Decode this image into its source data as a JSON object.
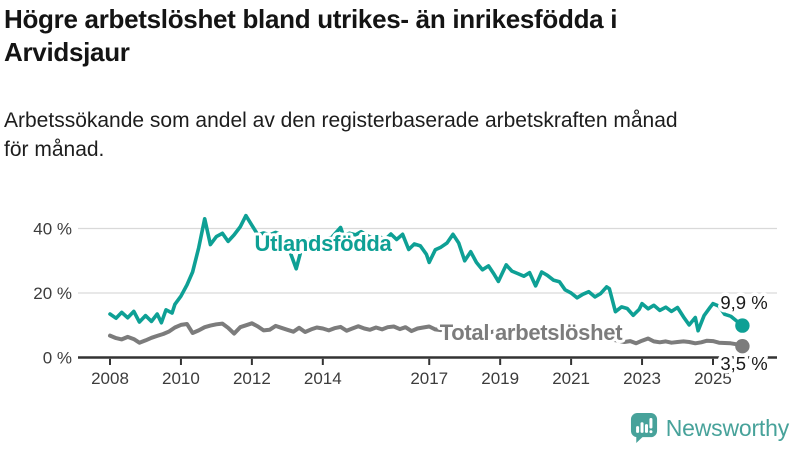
{
  "header": {
    "title_lines": [
      "Högre arbetslöshet bland utrikes- än inrikesfödda i",
      "Arvidsjaur"
    ],
    "subtitle_lines": [
      "Arbetssökande som andel av den registerbaserade arbetskraften månad",
      "för månad."
    ]
  },
  "footer": {
    "brand": "Newsworthy"
  },
  "colors": {
    "teal": "#0ea095",
    "gray": "#7c7c7c",
    "grid": "#d9d9d9",
    "axis": "#333333",
    "tick_label": "#3c3c3c",
    "value_label": "#1a1a1a",
    "logo_teal": "#47a29a"
  },
  "chart_data": {
    "type": "line",
    "title": "Högre arbetslöshet bland utrikes- än inrikesfödda i Arvidsjaur",
    "xlabel": "",
    "ylabel": "",
    "ylim": [
      0,
      45
    ],
    "grid": "horizontal",
    "x_axis": {
      "ticks": [
        {
          "year": 2008,
          "label": "2008"
        },
        {
          "year": 2010,
          "label": "2010"
        },
        {
          "year": 2012,
          "label": "2012"
        },
        {
          "year": 2014,
          "label": "2014"
        },
        {
          "year": 2017,
          "label": "2017"
        },
        {
          "year": 2019,
          "label": "2019"
        },
        {
          "year": 2021,
          "label": "2021"
        },
        {
          "year": 2023,
          "label": "2023"
        },
        {
          "year": 2025,
          "label": "2025"
        }
      ]
    },
    "y_axis": {
      "ticks": [
        {
          "value": 0,
          "label": "0 %"
        },
        {
          "value": 20,
          "label": "20 %"
        },
        {
          "value": 40,
          "label": "40 %"
        }
      ]
    },
    "series": [
      {
        "name": "Utlandsfödda",
        "color": "#0ea095",
        "end_label": "9,9 %",
        "end_value": 9.9,
        "points": [
          [
            2008.0,
            13.5
          ],
          [
            2008.17,
            12.2
          ],
          [
            2008.33,
            14.0
          ],
          [
            2008.5,
            12.3
          ],
          [
            2008.67,
            14.3
          ],
          [
            2008.83,
            11.0
          ],
          [
            2009.0,
            13.0
          ],
          [
            2009.17,
            11.2
          ],
          [
            2009.33,
            13.5
          ],
          [
            2009.45,
            10.8
          ],
          [
            2009.58,
            14.8
          ],
          [
            2009.75,
            13.8
          ],
          [
            2009.83,
            16.5
          ],
          [
            2010.0,
            19.0
          ],
          [
            2010.17,
            22.5
          ],
          [
            2010.33,
            26.5
          ],
          [
            2010.5,
            34.0
          ],
          [
            2010.67,
            43.0
          ],
          [
            2010.83,
            35.0
          ],
          [
            2011.0,
            37.5
          ],
          [
            2011.17,
            38.5
          ],
          [
            2011.33,
            36.0
          ],
          [
            2011.5,
            38.0
          ],
          [
            2011.67,
            40.5
          ],
          [
            2011.83,
            44.0
          ],
          [
            2012.0,
            41.0
          ],
          [
            2012.17,
            38.0
          ],
          [
            2012.33,
            38.6
          ],
          [
            2012.5,
            38.0
          ],
          [
            2012.67,
            38.8
          ],
          [
            2012.83,
            38.0
          ],
          [
            2013.0,
            35.0
          ],
          [
            2013.25,
            27.5
          ],
          [
            2013.42,
            34.5
          ],
          [
            2013.58,
            36.5
          ],
          [
            2013.75,
            37.2
          ],
          [
            2013.92,
            36.0
          ],
          [
            2014.08,
            36.8
          ],
          [
            2014.25,
            37.2
          ],
          [
            2014.5,
            40.3
          ],
          [
            2014.58,
            37.8
          ],
          [
            2014.75,
            38.5
          ],
          [
            2014.92,
            38.0
          ],
          [
            2015.08,
            39.0
          ],
          [
            2015.25,
            37.8
          ],
          [
            2015.42,
            36.8
          ],
          [
            2015.58,
            37.6
          ],
          [
            2015.75,
            36.5
          ],
          [
            2015.92,
            38.3
          ],
          [
            2016.08,
            36.6
          ],
          [
            2016.25,
            38.2
          ],
          [
            2016.42,
            33.5
          ],
          [
            2016.58,
            35.2
          ],
          [
            2016.75,
            34.6
          ],
          [
            2016.92,
            32.0
          ],
          [
            2017.0,
            29.5
          ],
          [
            2017.17,
            33.4
          ],
          [
            2017.33,
            34.2
          ],
          [
            2017.5,
            35.5
          ],
          [
            2017.67,
            38.2
          ],
          [
            2017.83,
            35.5
          ],
          [
            2018.0,
            30.0
          ],
          [
            2018.17,
            32.8
          ],
          [
            2018.33,
            29.5
          ],
          [
            2018.5,
            27.2
          ],
          [
            2018.67,
            28.4
          ],
          [
            2018.83,
            25.8
          ],
          [
            2018.95,
            23.6
          ],
          [
            2019.17,
            28.7
          ],
          [
            2019.33,
            26.8
          ],
          [
            2019.5,
            26.0
          ],
          [
            2019.67,
            25.2
          ],
          [
            2019.83,
            26.3
          ],
          [
            2020.0,
            22.2
          ],
          [
            2020.17,
            26.5
          ],
          [
            2020.33,
            25.5
          ],
          [
            2020.5,
            24.0
          ],
          [
            2020.67,
            23.5
          ],
          [
            2020.83,
            21.0
          ],
          [
            2021.0,
            20.0
          ],
          [
            2021.17,
            18.5
          ],
          [
            2021.33,
            19.6
          ],
          [
            2021.5,
            20.4
          ],
          [
            2021.67,
            18.8
          ],
          [
            2021.83,
            19.8
          ],
          [
            2022.0,
            21.9
          ],
          [
            2022.08,
            21.3
          ],
          [
            2022.25,
            14.2
          ],
          [
            2022.42,
            15.7
          ],
          [
            2022.58,
            15.2
          ],
          [
            2022.75,
            13.1
          ],
          [
            2022.92,
            14.9
          ],
          [
            2023.0,
            16.7
          ],
          [
            2023.17,
            15.1
          ],
          [
            2023.33,
            16.2
          ],
          [
            2023.5,
            14.6
          ],
          [
            2023.67,
            15.6
          ],
          [
            2023.83,
            14.3
          ],
          [
            2024.0,
            15.5
          ],
          [
            2024.17,
            12.6
          ],
          [
            2024.33,
            10.1
          ],
          [
            2024.5,
            12.4
          ],
          [
            2024.58,
            8.3
          ],
          [
            2024.75,
            13.0
          ],
          [
            2024.92,
            15.6
          ],
          [
            2025.0,
            16.7
          ],
          [
            2025.17,
            15.9
          ],
          [
            2025.33,
            13.4
          ],
          [
            2025.5,
            12.8
          ],
          [
            2025.67,
            11.3
          ],
          [
            2025.83,
            9.9
          ]
        ]
      },
      {
        "name": "Total arbetslöshet",
        "color": "#7c7c7c",
        "end_label": "3,5 %",
        "end_value": 3.5,
        "points": [
          [
            2008.0,
            6.8
          ],
          [
            2008.17,
            6.0
          ],
          [
            2008.33,
            5.6
          ],
          [
            2008.5,
            6.4
          ],
          [
            2008.67,
            5.7
          ],
          [
            2008.83,
            4.6
          ],
          [
            2009.0,
            5.3
          ],
          [
            2009.17,
            6.1
          ],
          [
            2009.33,
            6.7
          ],
          [
            2009.5,
            7.3
          ],
          [
            2009.67,
            8.1
          ],
          [
            2009.83,
            9.3
          ],
          [
            2010.0,
            10.1
          ],
          [
            2010.17,
            10.4
          ],
          [
            2010.33,
            7.6
          ],
          [
            2010.5,
            8.4
          ],
          [
            2010.67,
            9.4
          ],
          [
            2010.83,
            9.9
          ],
          [
            2011.0,
            10.3
          ],
          [
            2011.17,
            10.5
          ],
          [
            2011.33,
            9.2
          ],
          [
            2011.5,
            7.4
          ],
          [
            2011.67,
            9.4
          ],
          [
            2011.83,
            10.0
          ],
          [
            2012.0,
            10.6
          ],
          [
            2012.17,
            9.6
          ],
          [
            2012.33,
            8.4
          ],
          [
            2012.5,
            8.6
          ],
          [
            2012.67,
            9.8
          ],
          [
            2012.83,
            9.2
          ],
          [
            2013.0,
            8.6
          ],
          [
            2013.17,
            8.0
          ],
          [
            2013.33,
            9.2
          ],
          [
            2013.5,
            7.9
          ],
          [
            2013.67,
            8.7
          ],
          [
            2013.83,
            9.3
          ],
          [
            2014.0,
            9.0
          ],
          [
            2014.17,
            8.4
          ],
          [
            2014.33,
            9.1
          ],
          [
            2014.5,
            9.5
          ],
          [
            2014.67,
            8.3
          ],
          [
            2014.83,
            9.0
          ],
          [
            2015.0,
            9.7
          ],
          [
            2015.17,
            9.0
          ],
          [
            2015.33,
            8.6
          ],
          [
            2015.5,
            9.3
          ],
          [
            2015.67,
            8.7
          ],
          [
            2015.83,
            9.4
          ],
          [
            2016.0,
            9.6
          ],
          [
            2016.17,
            8.8
          ],
          [
            2016.33,
            9.4
          ],
          [
            2016.5,
            8.2
          ],
          [
            2016.67,
            9.0
          ],
          [
            2016.83,
            9.3
          ],
          [
            2017.0,
            9.6
          ],
          [
            2017.17,
            8.7
          ],
          [
            2017.33,
            8.5
          ],
          [
            2017.5,
            8.9
          ],
          [
            2017.67,
            8.3
          ],
          [
            2017.83,
            8.6
          ],
          [
            2018.0,
            8.4
          ],
          [
            2018.17,
            8.7
          ],
          [
            2018.33,
            7.9
          ],
          [
            2018.5,
            8.3
          ],
          [
            2018.67,
            7.7
          ],
          [
            2018.83,
            8.1
          ],
          [
            2019.0,
            7.6
          ],
          [
            2019.17,
            8.0
          ],
          [
            2019.33,
            7.7
          ],
          [
            2019.5,
            7.3
          ],
          [
            2019.67,
            7.7
          ],
          [
            2019.83,
            7.1
          ],
          [
            2020.0,
            7.0
          ],
          [
            2020.17,
            7.9
          ],
          [
            2020.33,
            8.3
          ],
          [
            2020.5,
            8.0
          ],
          [
            2020.67,
            7.7
          ],
          [
            2020.83,
            7.4
          ],
          [
            2021.0,
            7.2
          ],
          [
            2021.17,
            6.8
          ],
          [
            2021.33,
            6.5
          ],
          [
            2021.5,
            6.2
          ],
          [
            2021.67,
            6.0
          ],
          [
            2021.83,
            5.8
          ],
          [
            2022.0,
            5.6
          ],
          [
            2022.17,
            5.5
          ],
          [
            2022.33,
            5.2
          ],
          [
            2022.5,
            4.8
          ],
          [
            2022.67,
            5.1
          ],
          [
            2022.83,
            4.4
          ],
          [
            2023.0,
            5.2
          ],
          [
            2023.17,
            5.9
          ],
          [
            2023.33,
            5.0
          ],
          [
            2023.5,
            4.7
          ],
          [
            2023.67,
            5.0
          ],
          [
            2023.83,
            4.6
          ],
          [
            2024.0,
            4.8
          ],
          [
            2024.17,
            5.0
          ],
          [
            2024.33,
            4.8
          ],
          [
            2024.5,
            4.4
          ],
          [
            2024.67,
            4.7
          ],
          [
            2024.83,
            5.2
          ],
          [
            2025.0,
            5.1
          ],
          [
            2025.17,
            4.6
          ],
          [
            2025.33,
            4.5
          ],
          [
            2025.5,
            4.4
          ],
          [
            2025.67,
            4.1
          ],
          [
            2025.83,
            3.5
          ]
        ]
      }
    ]
  }
}
